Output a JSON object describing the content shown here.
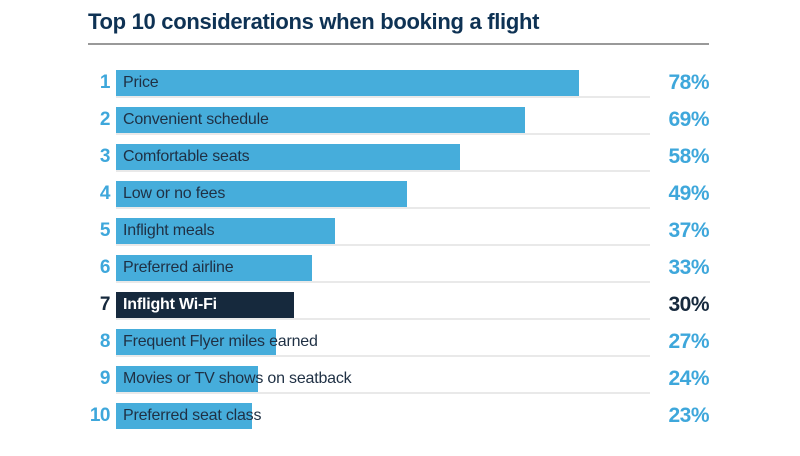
{
  "title": "Top 10 considerations when booking a flight",
  "colors": {
    "bar": "#46ADDB",
    "accent_text": "#3EA7DB",
    "highlight_bar": "#16293D",
    "highlight_text": "#FFFFFF",
    "title_text": "#0E3254",
    "label_text": "#1F3044",
    "row_line": "#E9E9E9",
    "title_line": "#999999",
    "background": "#FFFFFF"
  },
  "chart_data": {
    "type": "bar",
    "orientation": "horizontal",
    "title": "Top 10 considerations when booking a flight",
    "categories": [
      "Price",
      "Convenient schedule",
      "Comfortable seats",
      "Low or no fees",
      "Inflight meals",
      "Preferred airline",
      "Inflight Wi-Fi",
      "Frequent Flyer miles earned",
      "Movies or TV shows on seatback",
      "Preferred seat class"
    ],
    "ranks": [
      "1",
      "2",
      "3",
      "4",
      "5",
      "6",
      "7",
      "8",
      "9",
      "10"
    ],
    "values": [
      78,
      69,
      58,
      49,
      37,
      33,
      30,
      27,
      24,
      23
    ],
    "value_labels": [
      "78%",
      "69%",
      "58%",
      "49%",
      "37%",
      "33%",
      "30%",
      "27%",
      "24%",
      "23%"
    ],
    "unit": "%",
    "xlim": [
      0,
      100
    ],
    "grid": "off",
    "legend": "none",
    "highlight_index": 6,
    "highlighted_category": "Inflight Wi-Fi"
  }
}
